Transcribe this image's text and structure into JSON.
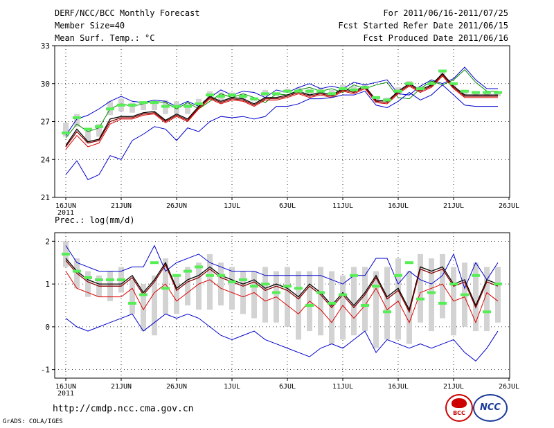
{
  "header": {
    "title": "DERF/NCC/BCC Monthly Forecast",
    "member": "Member Size=40",
    "variable": "Mean Surf. Temp.: °C",
    "period": "For 2011/06/16-2011/07/25",
    "refer": "Fcst Started Refer Date 2011/06/15",
    "produced": "Fcst Produced Date 2011/06/16"
  },
  "footer": {
    "url": "http://cmdp.ncc.cma.gov.cn",
    "grads": "GrADS: COLA/IGES",
    "logo_left": "BCC",
    "logo_right": "NCC"
  },
  "colors": {
    "ens_max": "#0000cc",
    "ens_min": "#0000cc",
    "p90": "#008800",
    "p10": "#dd0000",
    "mean": "#000000",
    "median": "#8b0000",
    "box": "#d3d3d3",
    "obs": "#55ee55"
  },
  "chart_data": [
    {
      "type": "line",
      "title": "Mean Surf. Temp.: °C",
      "xlabel": "",
      "ylabel": "",
      "x_ticks": [
        "16JUN",
        "21JUN",
        "26JUN",
        "1JUL",
        "6JUL",
        "11JUL",
        "16JUL",
        "21JUL",
        "26JUL"
      ],
      "x_year": "2011",
      "y_ticks": [
        "21",
        "24",
        "27",
        "30",
        "33"
      ],
      "ylim": [
        21,
        33
      ],
      "x_start_day": 0,
      "series": [
        {
          "name": "ens_max",
          "values": [
            25.9,
            27.2,
            27.5,
            28.0,
            28.6,
            29.0,
            28.6,
            28.5,
            28.7,
            28.6,
            28.2,
            28.6,
            28.2,
            28.9,
            29.5,
            29.1,
            29.4,
            29.3,
            28.9,
            29.5,
            29.3,
            29.7,
            30.0,
            29.6,
            29.8,
            29.6,
            30.1,
            29.9,
            30.1,
            30.3,
            29.2,
            29.1,
            29.8,
            30.3,
            30.0,
            30.4,
            31.3,
            30.3,
            29.6,
            29.6
          ]
        },
        {
          "name": "p90",
          "values": [
            25.7,
            26.8,
            26.2,
            26.5,
            28.0,
            28.4,
            28.2,
            28.4,
            28.6,
            28.5,
            28.0,
            28.5,
            28.0,
            28.6,
            29.2,
            28.9,
            29.2,
            28.9,
            28.5,
            29.2,
            29.1,
            29.5,
            29.7,
            29.4,
            29.6,
            29.3,
            29.9,
            29.6,
            29.9,
            30.1,
            28.9,
            28.8,
            29.6,
            30.2,
            29.9,
            30.3,
            31.1,
            30.1,
            29.4,
            29.4
          ]
        },
        {
          "name": "mean",
          "values": [
            25.1,
            26.4,
            25.4,
            25.6,
            27.2,
            27.4,
            27.4,
            27.7,
            27.8,
            27.1,
            27.6,
            27.2,
            28.2,
            29.0,
            28.6,
            28.9,
            28.8,
            28.4,
            28.9,
            28.9,
            29.1,
            29.4,
            29.1,
            29.3,
            29.1,
            29.6,
            29.4,
            29.8,
            28.7,
            28.6,
            29.4,
            30.0,
            29.5,
            29.9,
            30.8,
            29.8,
            29.1,
            29.1,
            29.1,
            29.1
          ]
        },
        {
          "name": "median",
          "values": [
            25.0,
            26.2,
            25.3,
            25.5,
            27.0,
            27.3,
            27.3,
            27.6,
            27.7,
            27.0,
            27.5,
            27.1,
            28.1,
            28.9,
            28.5,
            28.8,
            28.7,
            28.3,
            28.8,
            28.8,
            29.0,
            29.3,
            29.0,
            29.2,
            29.0,
            29.5,
            29.3,
            29.7,
            28.6,
            28.5,
            29.3,
            29.9,
            29.4,
            29.8,
            30.7,
            29.7,
            29.0,
            29.0,
            29.0,
            29.0
          ]
        },
        {
          "name": "p10",
          "values": [
            24.8,
            25.9,
            25.0,
            25.3,
            26.8,
            27.2,
            27.2,
            27.5,
            27.6,
            26.9,
            27.4,
            27.0,
            28.0,
            28.8,
            28.4,
            28.7,
            28.6,
            28.2,
            28.7,
            28.7,
            28.9,
            29.2,
            28.9,
            29.1,
            28.9,
            29.4,
            29.2,
            29.6,
            28.5,
            28.4,
            29.2,
            29.8,
            29.3,
            29.7,
            30.6,
            29.6,
            28.9,
            28.9,
            28.9,
            28.9
          ]
        },
        {
          "name": "ens_min",
          "values": [
            22.8,
            23.9,
            22.4,
            22.8,
            24.3,
            24.0,
            25.5,
            26.0,
            26.6,
            26.4,
            25.5,
            26.5,
            26.2,
            27.0,
            27.4,
            27.3,
            27.4,
            27.2,
            27.4,
            28.2,
            28.2,
            28.4,
            28.8,
            28.8,
            28.9,
            29.1,
            29.1,
            29.4,
            28.3,
            28.1,
            28.6,
            29.3,
            28.7,
            29.1,
            29.9,
            29.1,
            28.3,
            28.2,
            28.2,
            28.2
          ]
        }
      ],
      "boxes": [
        [
          25.8,
          26.9
        ],
        [
          26.6,
          27.6
        ],
        [
          25.3,
          26.4
        ],
        [
          25.8,
          26.8
        ],
        [
          27.5,
          28.6
        ],
        [
          27.8,
          28.8
        ],
        [
          27.7,
          28.5
        ],
        [
          27.9,
          28.6
        ],
        [
          27.9,
          28.6
        ],
        [
          27.6,
          28.7
        ],
        [
          27.6,
          28.6
        ],
        [
          27.6,
          28.5
        ],
        [
          28.2,
          28.8
        ],
        [
          28.7,
          29.4
        ],
        [
          28.7,
          29.3
        ],
        [
          28.9,
          29.3
        ],
        [
          28.7,
          29.2
        ],
        [
          28.6,
          28.9
        ],
        [
          29.0,
          29.5
        ],
        [
          29.0,
          29.3
        ],
        [
          29.3,
          29.6
        ],
        [
          29.3,
          29.7
        ],
        [
          29.1,
          29.6
        ],
        [
          29.3,
          29.7
        ],
        [
          29.0,
          29.5
        ],
        [
          29.4,
          29.9
        ],
        [
          29.3,
          29.8
        ],
        [
          29.6,
          30.0
        ],
        [
          28.6,
          29.0
        ],
        [
          28.6,
          28.9
        ],
        [
          29.1,
          29.7
        ],
        [
          29.9,
          30.2
        ],
        [
          29.4,
          29.8
        ],
        [
          29.8,
          30.2
        ],
        [
          30.6,
          31.1
        ],
        [
          29.7,
          30.1
        ],
        [
          29.1,
          29.4
        ],
        [
          29.0,
          29.4
        ],
        [
          29.0,
          29.4
        ],
        [
          29.0,
          29.4
        ]
      ],
      "obs": [
        26.1,
        27.3,
        26.4,
        26.6,
        28.0,
        28.3,
        28.3,
        28.5,
        28.5,
        28.2,
        28.2,
        28.2,
        28.4,
        29.1,
        29.0,
        29.1,
        29.0,
        28.8,
        29.2,
        29.2,
        29.4,
        29.4,
        29.4,
        29.4,
        29.2,
        29.6,
        29.5,
        29.7,
        28.9,
        28.7,
        29.4,
        30.0,
        29.6,
        30.0,
        31.0,
        30.0,
        29.4,
        29.3,
        29.3,
        29.3
      ]
    },
    {
      "type": "line",
      "title": "Prec.: log(mm/d)",
      "xlabel": "",
      "ylabel": "",
      "x_ticks": [
        "16JUN",
        "21JUN",
        "26JUN",
        "1JUL",
        "6JUL",
        "11JUL",
        "16JUL",
        "21JUL",
        "26JUL"
      ],
      "x_year": "2011",
      "y_ticks": [
        "-1",
        "0",
        "1",
        "2"
      ],
      "ylim": [
        -1.2,
        2.2
      ],
      "x_start_day": 0,
      "series": [
        {
          "name": "ens_max",
          "values": [
            1.9,
            1.5,
            1.4,
            1.3,
            1.3,
            1.3,
            1.4,
            1.4,
            1.9,
            1.3,
            1.5,
            1.6,
            1.7,
            1.5,
            1.4,
            1.3,
            1.3,
            1.3,
            1.2,
            1.2,
            1.2,
            1.2,
            1.2,
            1.2,
            1.1,
            1.0,
            1.2,
            1.2,
            1.6,
            1.6,
            1.0,
            1.3,
            1.1,
            1.0,
            1.2,
            1.7,
            0.9,
            1.5,
            1.1,
            1.5
          ]
        },
        {
          "name": "mean",
          "values": [
            1.6,
            1.3,
            1.1,
            1.0,
            1.0,
            1.0,
            1.2,
            0.8,
            1.1,
            1.5,
            0.9,
            1.1,
            1.2,
            1.4,
            1.2,
            1.1,
            1.0,
            1.1,
            0.9,
            1.0,
            0.9,
            0.7,
            1.0,
            0.8,
            0.5,
            0.8,
            0.5,
            0.8,
            1.2,
            0.7,
            0.9,
            0.4,
            1.4,
            1.3,
            1.4,
            1.0,
            1.1,
            0.5,
            1.1,
            1.0
          ]
        },
        {
          "name": "median",
          "values": [
            1.55,
            1.25,
            1.05,
            0.95,
            0.95,
            0.95,
            1.15,
            0.75,
            1.05,
            1.45,
            0.85,
            1.05,
            1.15,
            1.35,
            1.15,
            1.05,
            0.95,
            1.05,
            0.85,
            0.95,
            0.85,
            0.65,
            0.95,
            0.75,
            0.45,
            0.75,
            0.45,
            0.75,
            1.15,
            0.65,
            0.85,
            0.35,
            1.35,
            1.25,
            1.35,
            0.95,
            1.05,
            0.45,
            1.05,
            0.95
          ]
        },
        {
          "name": "p10",
          "values": [
            1.3,
            0.9,
            0.8,
            0.7,
            0.7,
            0.7,
            0.9,
            0.4,
            0.8,
            1.0,
            0.6,
            0.8,
            1.0,
            1.1,
            0.9,
            0.8,
            0.7,
            0.8,
            0.6,
            0.7,
            0.5,
            0.3,
            0.6,
            0.4,
            0.1,
            0.5,
            0.2,
            0.5,
            0.9,
            0.4,
            0.6,
            0.1,
            0.8,
            0.9,
            1.0,
            0.6,
            0.7,
            0.1,
            0.8,
            0.6
          ]
        },
        {
          "name": "ens_min",
          "values": [
            0.2,
            0.0,
            -0.1,
            0.0,
            0.1,
            0.2,
            0.3,
            -0.1,
            0.1,
            0.3,
            0.2,
            0.3,
            0.2,
            0.0,
            -0.2,
            -0.3,
            -0.2,
            -0.1,
            -0.3,
            -0.4,
            -0.5,
            -0.6,
            -0.7,
            -0.5,
            -0.4,
            -0.5,
            -0.3,
            -0.1,
            -0.6,
            -0.3,
            -0.4,
            -0.5,
            -0.4,
            -0.5,
            -0.4,
            -0.3,
            -0.6,
            -0.8,
            -0.5,
            -0.1
          ]
        }
      ],
      "boxes": [
        [
          1.4,
          2.0
        ],
        [
          0.9,
          1.6
        ],
        [
          0.7,
          1.3
        ],
        [
          0.7,
          1.2
        ],
        [
          0.6,
          1.3
        ],
        [
          0.8,
          1.4
        ],
        [
          0.3,
          1.1
        ],
        [
          -0.1,
          1.0
        ],
        [
          -0.2,
          1.2
        ],
        [
          0.3,
          1.6
        ],
        [
          0.3,
          1.2
        ],
        [
          0.5,
          1.4
        ],
        [
          0.4,
          1.5
        ],
        [
          0.4,
          1.7
        ],
        [
          0.5,
          1.5
        ],
        [
          0.4,
          1.4
        ],
        [
          0.3,
          1.3
        ],
        [
          0.2,
          1.3
        ],
        [
          0.1,
          1.4
        ],
        [
          0.1,
          1.3
        ],
        [
          0.0,
          1.4
        ],
        [
          -0.3,
          1.3
        ],
        [
          -0.1,
          1.3
        ],
        [
          -0.2,
          1.4
        ],
        [
          -0.4,
          1.3
        ],
        [
          -0.3,
          1.2
        ],
        [
          -0.2,
          1.4
        ],
        [
          -0.1,
          1.4
        ],
        [
          -0.5,
          1.3
        ],
        [
          -0.3,
          1.4
        ],
        [
          -0.3,
          1.6
        ],
        [
          -0.4,
          1.3
        ],
        [
          0.1,
          1.7
        ],
        [
          -0.1,
          1.6
        ],
        [
          0.2,
          1.7
        ],
        [
          -0.2,
          1.4
        ],
        [
          0.0,
          1.5
        ],
        [
          -0.1,
          1.5
        ],
        [
          -0.1,
          1.4
        ],
        [
          0.1,
          1.4
        ]
      ],
      "obs": [
        1.7,
        1.3,
        1.15,
        1.1,
        1.1,
        1.1,
        0.55,
        0.75,
        1.5,
        0.9,
        1.2,
        1.3,
        1.4,
        1.2,
        1.2,
        1.05,
        1.1,
        0.95,
        1.0,
        0.8,
        0.95,
        0.9,
        0.5,
        0.8,
        0.55,
        0.75,
        1.2,
        0.5,
        0.95,
        0.35,
        1.2,
        1.5,
        0.65,
        0.8,
        0.55,
        1.0,
        0.75,
        1.2,
        0.35,
        1.0
      ]
    }
  ]
}
